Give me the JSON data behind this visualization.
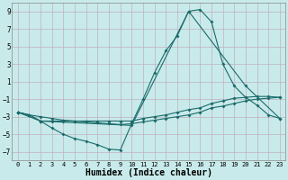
{
  "xlabel": "Humidex (Indice chaleur)",
  "bg_color": "#c8eaea",
  "grid_color": "#c0b0c0",
  "line_color": "#1a6b6b",
  "xlim": [
    -0.5,
    23.5
  ],
  "ylim": [
    -8,
    10
  ],
  "yticks": [
    -7,
    -5,
    -3,
    -1,
    1,
    3,
    5,
    7,
    9
  ],
  "xticks": [
    0,
    1,
    2,
    3,
    4,
    5,
    6,
    7,
    8,
    9,
    10,
    11,
    12,
    13,
    14,
    15,
    16,
    17,
    18,
    19,
    20,
    21,
    22,
    23
  ],
  "line1_x": [
    0,
    1,
    2,
    3,
    4,
    5,
    6,
    7,
    8,
    9,
    10,
    11,
    12,
    13,
    14,
    15,
    16,
    17,
    18,
    19,
    20,
    21,
    22,
    23
  ],
  "line1_y": [
    -2.5,
    -2.8,
    -3.5,
    -4.3,
    -5.0,
    -5.5,
    -5.8,
    -6.2,
    -6.7,
    -6.8,
    -3.8,
    -1.0,
    2.0,
    4.5,
    6.2,
    9.0,
    9.2,
    7.8,
    3.0,
    0.5,
    -0.8,
    -1.7,
    -2.8,
    -3.2
  ],
  "line2_x": [
    0,
    2,
    10,
    15,
    20,
    23
  ],
  "line2_y": [
    -2.5,
    -3.5,
    -4.0,
    9.0,
    0.5,
    -3.2
  ],
  "line3_x": [
    0,
    1,
    2,
    3,
    4,
    5,
    6,
    7,
    8,
    9,
    10,
    11,
    12,
    13,
    14,
    15,
    16,
    17,
    18,
    19,
    20,
    21,
    22,
    23
  ],
  "line3_y": [
    -2.5,
    -2.8,
    -3.5,
    -3.5,
    -3.5,
    -3.5,
    -3.5,
    -3.5,
    -3.5,
    -3.5,
    -3.5,
    -3.2,
    -3.0,
    -2.8,
    -2.5,
    -2.2,
    -2.0,
    -1.5,
    -1.2,
    -0.9,
    -0.8,
    -0.7,
    -0.7,
    -0.8
  ],
  "line4_x": [
    0,
    1,
    2,
    3,
    4,
    5,
    6,
    7,
    8,
    9,
    10,
    11,
    12,
    13,
    14,
    15,
    16,
    17,
    18,
    19,
    20,
    21,
    22,
    23
  ],
  "line4_y": [
    -2.5,
    -2.8,
    -3.0,
    -3.2,
    -3.4,
    -3.5,
    -3.6,
    -3.7,
    -3.8,
    -3.9,
    -3.8,
    -3.6,
    -3.4,
    -3.2,
    -3.0,
    -2.8,
    -2.5,
    -2.0,
    -1.8,
    -1.5,
    -1.2,
    -1.0,
    -0.9,
    -0.8
  ]
}
